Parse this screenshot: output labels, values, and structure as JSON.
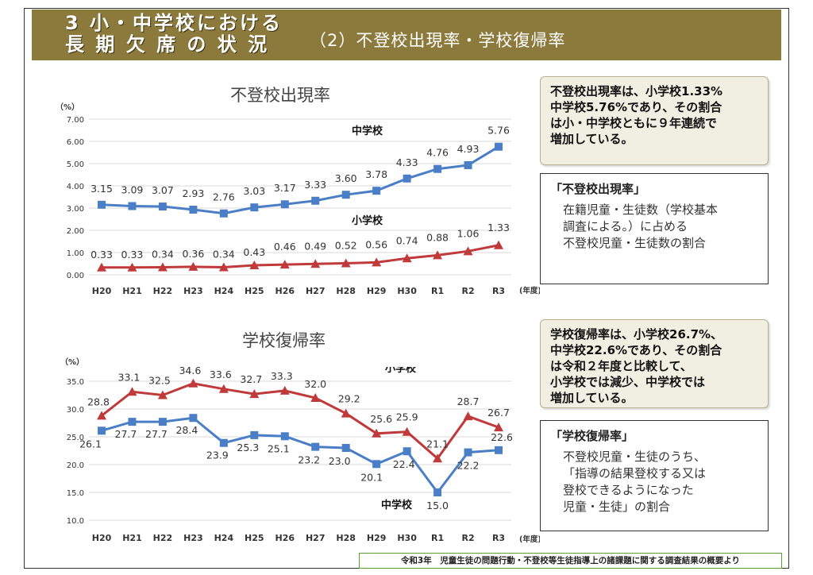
{
  "header": {
    "title_main": "3 小・中学校における\n長 期 欠 席 の 状 況",
    "title_sub": "（2）不登校出現率・学校復帰率"
  },
  "charts_text": {
    "chart1_title": "不登校出現率",
    "chart2_title": "学校復帰率",
    "unit_percent": "（%）",
    "year_unit": "(年度)"
  },
  "notes": {
    "note1": "不登校出現率は、小学校1.33%\n中学校5.76%であり、その割合\nは小・中学校ともに９年連続で\n増加している。",
    "def1_title": "「不登校出現率」",
    "def1_body": "在籍児童・生徒数（学校基本\n調査による。）に占める\n不登校児童・生徒数の割合",
    "note2": "学校復帰率は、小学校26.7%、\n中学校22.6%であり、その割合\nは令和２年度と比較して、\n小学校では減少、中学校では\n増加している。",
    "def2_title": "「学校復帰率」",
    "def2_body": "不登校児童・生徒のうち、\n「指導の結果登校する又は\n登校できるようになった\n児童・生徒」の割合"
  },
  "footer": {
    "source": "令和3年　児童生徒の問題行動・不登校等生徒指導上の諸課題に関する調査結果の概要より"
  },
  "colors": {
    "header_bg": "#8c7a3c",
    "blue": "#4a7ec6",
    "red": "#c0393b"
  },
  "chart_data": [
    {
      "type": "line",
      "title": "不登校出現率",
      "ylabel": "(%)",
      "xlabel": "(年度)",
      "categories": [
        "H20",
        "H21",
        "H22",
        "H23",
        "H24",
        "H25",
        "H26",
        "H27",
        "H28",
        "H29",
        "H30",
        "R1",
        "R2",
        "R3"
      ],
      "ylim": [
        0,
        7
      ],
      "yticks": [
        "0.00",
        "1.00",
        "2.00",
        "3.00",
        "4.00",
        "5.00",
        "6.00",
        "7.00"
      ],
      "grid": true,
      "series": [
        {
          "name": "中学校",
          "color": "#4a7ec6",
          "marker": "square",
          "values": [
            3.15,
            3.09,
            3.07,
            2.93,
            2.76,
            3.03,
            3.17,
            3.33,
            3.6,
            3.78,
            4.33,
            4.76,
            4.93,
            5.76
          ],
          "labels": [
            "3.15",
            "3.09",
            "3.07",
            "2.93",
            "2.76",
            "3.03",
            "3.17",
            "3.33",
            "3.60",
            "3.78",
            "4.33",
            "4.76",
            "4.93",
            "5.76"
          ]
        },
        {
          "name": "小学校",
          "color": "#c0393b",
          "marker": "triangle",
          "values": [
            0.33,
            0.33,
            0.34,
            0.36,
            0.34,
            0.43,
            0.46,
            0.49,
            0.52,
            0.56,
            0.74,
            0.88,
            1.06,
            1.33
          ],
          "labels": [
            "0.33",
            "0.33",
            "0.34",
            "0.36",
            "0.34",
            "0.43",
            "0.46",
            "0.49",
            "0.52",
            "0.56",
            "0.74",
            "0.88",
            "1.06",
            "1.33"
          ]
        }
      ]
    },
    {
      "type": "line",
      "title": "学校復帰率",
      "ylabel": "(%)",
      "xlabel": "(年度)",
      "categories": [
        "H20",
        "H21",
        "H22",
        "H23",
        "H24",
        "H25",
        "H26",
        "H27",
        "H28",
        "H29",
        "H30",
        "R1",
        "R2",
        "R3"
      ],
      "ylim": [
        10,
        35
      ],
      "yticks": [
        "10.0",
        "15.0",
        "20.0",
        "25.0",
        "30.0",
        "35.0"
      ],
      "grid": true,
      "series": [
        {
          "name": "小学校",
          "color": "#c0393b",
          "marker": "triangle",
          "values": [
            28.8,
            33.1,
            32.5,
            34.6,
            33.6,
            32.7,
            33.3,
            32.0,
            29.2,
            25.6,
            25.9,
            21.1,
            28.7,
            26.7
          ],
          "labels": [
            "28.8",
            "33.1",
            "32.5",
            "34.6",
            "33.6",
            "32.7",
            "33.3",
            "32.0",
            "29.2",
            "25.6",
            "25.9",
            "21.1",
            "28.7",
            "26.7"
          ]
        },
        {
          "name": "中学校",
          "color": "#4a7ec6",
          "marker": "square",
          "values": [
            26.1,
            27.7,
            27.7,
            28.4,
            23.9,
            25.3,
            25.1,
            23.2,
            23.0,
            20.1,
            22.4,
            15.0,
            22.2,
            22.6
          ],
          "labels": [
            "26.1",
            "27.7",
            "27.7",
            "28.4",
            "23.9",
            "25.3",
            "25.1",
            "23.2",
            "23.0",
            "20.1",
            "22.4",
            "15.0",
            "22.2",
            "22.6"
          ]
        }
      ]
    }
  ]
}
